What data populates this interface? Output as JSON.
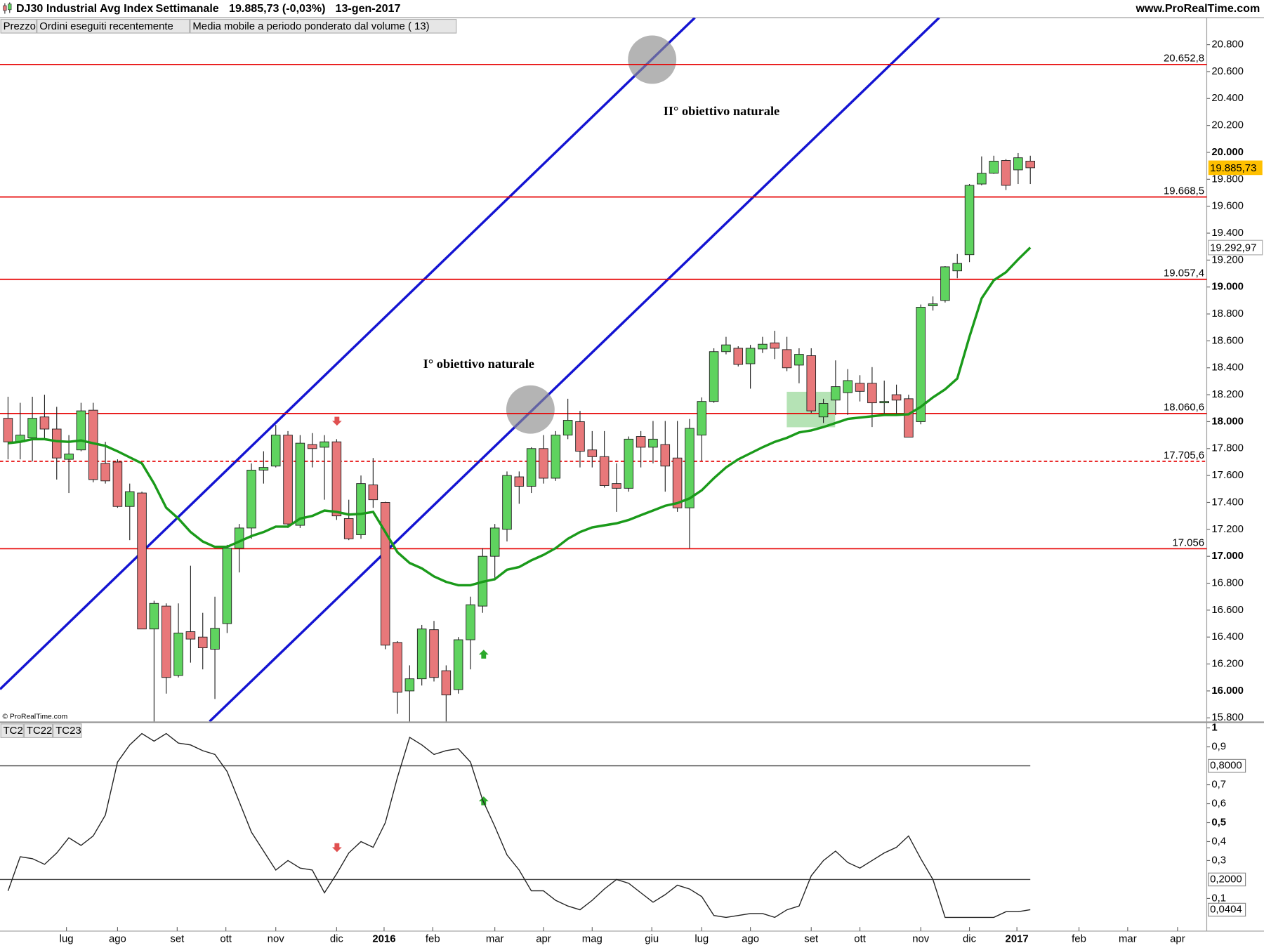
{
  "header": {
    "symbol": "DJ30 Industrial Avg Index",
    "period": "Settimanale",
    "quote": "19.885,73 (-0,03%)",
    "date": "13-gen-2017",
    "site": "www.ProRealTime.com"
  },
  "copyright": "© ProRealTime.com",
  "chart_data": [
    {
      "type": "candlestick",
      "legend": {
        "price": "Prezzo",
        "orders": "Ordini eseguiti recentemente",
        "orders_color": "#e87070"
      },
      "annotations": [
        "II° obiettivo naturale",
        "I° obiettivo naturale"
      ],
      "xlim": [
        -0.66,
        98.5
      ],
      "ylim": [
        15773,
        21000
      ],
      "yticks": [
        {
          "value": 15800,
          "label": "15.800"
        },
        {
          "value": 16000,
          "label": "16.000"
        },
        {
          "value": 16200,
          "label": "16.200"
        },
        {
          "value": 16400,
          "label": "16.400"
        },
        {
          "value": 16600,
          "label": "16.600"
        },
        {
          "value": 16800,
          "label": "16.800"
        },
        {
          "value": 17000,
          "label": "17.000"
        },
        {
          "value": 17200,
          "label": "17.200"
        },
        {
          "value": 17400,
          "label": "17.400"
        },
        {
          "value": 17600,
          "label": "17.600"
        },
        {
          "value": 17800,
          "label": "17.800"
        },
        {
          "value": 18000,
          "label": "18.000"
        },
        {
          "value": 18200,
          "label": "18.200"
        },
        {
          "value": 18400,
          "label": "18.400"
        },
        {
          "value": 18600,
          "label": "18.600"
        },
        {
          "value": 18800,
          "label": "18.800"
        },
        {
          "value": 19000,
          "label": "19.000"
        },
        {
          "value": 19200,
          "label": "19.200"
        },
        {
          "value": 19400,
          "label": "19.400"
        },
        {
          "value": 19600,
          "label": "19.600"
        },
        {
          "value": 19800,
          "label": "19.800"
        },
        {
          "value": 20000,
          "label": "20.000"
        },
        {
          "value": 20200,
          "label": "20.200"
        },
        {
          "value": 20400,
          "label": "20.400"
        },
        {
          "value": 20600,
          "label": "20.600"
        },
        {
          "value": 20800,
          "label": "20.800"
        }
      ],
      "levels": [
        {
          "value": 20652.8,
          "label": "20.652,8"
        },
        {
          "value": 19668.5,
          "label": "19.668,5"
        },
        {
          "value": 19057.4,
          "label": "19.057,4"
        },
        {
          "value": 18060.6,
          "label": "18.060,6"
        },
        {
          "value": 17705.6,
          "label": "17.705,6",
          "dashed": true
        },
        {
          "value": 17056,
          "label": "17.056"
        }
      ],
      "level_color": "#e60000",
      "series": [
        {
          "name": "Prezzo",
          "up_color": "#5fd35f",
          "down_color": "#e8787a",
          "last_label": "19.885,73",
          "last_color": "#ffc000",
          "open": [
            18025,
            17850,
            17880,
            18035,
            17945,
            17720,
            17790,
            18085,
            17690,
            17700,
            17370,
            17470,
            16460,
            16630,
            16115,
            16440,
            16400,
            16310,
            16500,
            17060,
            17210,
            17640,
            17670,
            17900,
            17230,
            17830,
            17810,
            17850,
            17280,
            17160,
            17530,
            17400,
            16360,
            16000,
            16090,
            16455,
            16150,
            16010,
            16380,
            16630,
            17000,
            17200,
            17590,
            17520,
            17800,
            17580,
            17900,
            18000,
            17790,
            17740,
            17540,
            17505,
            17890,
            17810,
            17830,
            17730,
            17360,
            17900,
            18150,
            18520,
            18545,
            18430,
            18540,
            18585,
            18535,
            18420,
            18490,
            18035,
            18160,
            18215,
            18285,
            18285,
            18140,
            18200,
            18170,
            18000,
            18860,
            18900,
            19120,
            19240,
            19765,
            19845,
            19940,
            19870,
            19935
          ],
          "high": [
            18185,
            18140,
            18185,
            18200,
            18110,
            17900,
            18140,
            18140,
            17850,
            17720,
            17540,
            17480,
            16670,
            16650,
            16650,
            16930,
            16580,
            16700,
            17085,
            17240,
            17690,
            17780,
            17975,
            17930,
            17900,
            17915,
            17900,
            17870,
            17420,
            17600,
            17730,
            17405,
            16370,
            16190,
            16490,
            16520,
            16190,
            16400,
            16700,
            17060,
            17240,
            17630,
            17630,
            17810,
            17900,
            17930,
            18170,
            18080,
            17930,
            17930,
            17690,
            17890,
            17930,
            18005,
            18005,
            18005,
            18020,
            18180,
            18545,
            18630,
            18560,
            18570,
            18630,
            18675,
            18630,
            18545,
            18545,
            18170,
            18455,
            18390,
            18345,
            18405,
            18305,
            18275,
            18200,
            18870,
            18930,
            19155,
            19245,
            19765,
            19970,
            19975,
            19950,
            19995,
            19975
          ],
          "low": [
            17720,
            17720,
            17705,
            17870,
            17570,
            17470,
            17780,
            17550,
            17540,
            17360,
            17120,
            16460,
            15370,
            15980,
            16100,
            16210,
            16160,
            15940,
            16430,
            16880,
            17130,
            17540,
            17660,
            17210,
            17210,
            17660,
            17420,
            17270,
            17120,
            17130,
            17360,
            16310,
            15830,
            15770,
            16040,
            16070,
            15770,
            15980,
            16160,
            16580,
            16820,
            17110,
            17390,
            17470,
            17540,
            17560,
            17870,
            17660,
            17660,
            17510,
            17330,
            17480,
            17660,
            17690,
            17480,
            17330,
            17060,
            17710,
            18140,
            18500,
            18410,
            18245,
            18510,
            18465,
            18375,
            18285,
            18065,
            17990,
            18050,
            18050,
            18150,
            17960,
            18050,
            18050,
            17885,
            17980,
            18825,
            18885,
            19065,
            19185,
            19755,
            19840,
            19720,
            19765,
            19765
          ],
          "close": [
            17850,
            17900,
            18025,
            17945,
            17730,
            17760,
            18080,
            17570,
            17560,
            17370,
            17480,
            16460,
            16650,
            16100,
            16430,
            16385,
            16320,
            16465,
            17060,
            17210,
            17640,
            17660,
            17900,
            17240,
            17840,
            17800,
            17850,
            17300,
            17130,
            17540,
            17420,
            16340,
            15990,
            16090,
            16460,
            16100,
            15970,
            16380,
            16640,
            17000,
            17210,
            17600,
            17520,
            17800,
            17580,
            17900,
            18010,
            17780,
            17740,
            17525,
            17505,
            17870,
            17810,
            17870,
            17670,
            17360,
            17950,
            18150,
            18520,
            18570,
            18425,
            18545,
            18575,
            18545,
            18400,
            18500,
            18080,
            18135,
            18260,
            18305,
            18225,
            18140,
            18150,
            18160,
            17885,
            18850,
            18875,
            19150,
            19175,
            19755,
            19845,
            19935,
            19755,
            19960,
            19885.73
          ]
        },
        {
          "name": "Media mobile a periodo ponderato dal volume ( 13)",
          "color": "#1a9a1a",
          "value_label": "19.292,97",
          "values": [
            17840,
            17850,
            17870,
            17870,
            17855,
            17850,
            17860,
            17840,
            17820,
            17780,
            17735,
            17690,
            17540,
            17360,
            17280,
            17180,
            17110,
            17070,
            17070,
            17110,
            17150,
            17180,
            17220,
            17220,
            17280,
            17300,
            17340,
            17330,
            17310,
            17315,
            17330,
            17180,
            17030,
            16950,
            16910,
            16850,
            16810,
            16785,
            16785,
            16810,
            16830,
            16900,
            16920,
            16970,
            17010,
            17060,
            17130,
            17180,
            17215,
            17230,
            17245,
            17270,
            17305,
            17340,
            17375,
            17395,
            17430,
            17490,
            17580,
            17660,
            17720,
            17765,
            17810,
            17850,
            17880,
            17920,
            17935,
            17960,
            17990,
            18020,
            18030,
            18040,
            18050,
            18050,
            18055,
            18110,
            18180,
            18240,
            18320,
            18630,
            18915,
            19050,
            19110,
            19205,
            19292.97
          ]
        }
      ]
    },
    {
      "type": "line",
      "tabs": [
        "TC2",
        "TC22",
        "TC23"
      ],
      "xlim": [
        -0.66,
        98.5
      ],
      "xticks": [
        {
          "value": 4.8,
          "label": "lug"
        },
        {
          "value": 9.0,
          "label": "ago"
        },
        {
          "value": 13.9,
          "label": "set"
        },
        {
          "value": 17.9,
          "label": "ott"
        },
        {
          "value": 22.0,
          "label": "nov"
        },
        {
          "value": 27.0,
          "label": "dic"
        },
        {
          "value": 30.9,
          "label": "2016"
        },
        {
          "value": 34.9,
          "label": "feb"
        },
        {
          "value": 40.0,
          "label": "mar"
        },
        {
          "value": 44.0,
          "label": "apr"
        },
        {
          "value": 48.0,
          "label": "mag"
        },
        {
          "value": 52.9,
          "label": "giu"
        },
        {
          "value": 57.0,
          "label": "lug"
        },
        {
          "value": 61.0,
          "label": "ago"
        },
        {
          "value": 66.0,
          "label": "set"
        },
        {
          "value": 70.0,
          "label": "ott"
        },
        {
          "value": 75.0,
          "label": "nov"
        },
        {
          "value": 79.0,
          "label": "dic"
        },
        {
          "value": 82.9,
          "label": "2017"
        },
        {
          "value": 88.0,
          "label": "feb"
        },
        {
          "value": 92.0,
          "label": "mar"
        },
        {
          "value": 96.1,
          "label": "apr"
        }
      ],
      "ylim": [
        -0.0723,
        1.0255
      ],
      "yticks": [
        1,
        {
          "value": 0.9,
          "label": "0,9"
        },
        {
          "value": 0.7,
          "label": "0,7"
        },
        {
          "value": 0.6,
          "label": "0,6"
        },
        {
          "value": 0.5,
          "label": "0,5"
        },
        {
          "value": 0.4,
          "label": "0,4"
        },
        {
          "value": 0.3,
          "label": "0,3"
        },
        {
          "value": 0.1,
          "label": "0,1"
        }
      ],
      "levels": [
        {
          "value": 0.8,
          "label": "0,8000"
        },
        {
          "value": 0.2,
          "label": "0,2000"
        }
      ],
      "level_color": "#444444",
      "series": [
        {
          "color": "#222222",
          "value_label": "0,0404",
          "values": [
            0.14,
            0.32,
            0.31,
            0.28,
            0.34,
            0.42,
            0.38,
            0.43,
            0.54,
            0.82,
            0.91,
            0.97,
            0.93,
            0.97,
            0.92,
            0.91,
            0.88,
            0.86,
            0.77,
            0.61,
            0.45,
            0.35,
            0.25,
            0.3,
            0.26,
            0.25,
            0.13,
            0.23,
            0.34,
            0.4,
            0.37,
            0.5,
            0.74,
            0.95,
            0.91,
            0.86,
            0.88,
            0.89,
            0.82,
            0.62,
            0.48,
            0.33,
            0.25,
            0.14,
            0.14,
            0.09,
            0.06,
            0.04,
            0.09,
            0.15,
            0.2,
            0.18,
            0.13,
            0.08,
            0.12,
            0.17,
            0.15,
            0.11,
            0.01,
            0.0,
            0.01,
            0.02,
            0.02,
            0.0,
            0.04,
            0.06,
            0.22,
            0.3,
            0.35,
            0.29,
            0.26,
            0.3,
            0.34,
            0.37,
            0.43,
            0.31,
            0.2,
            0.0,
            0.0,
            0.0,
            0.0,
            0.0,
            0.03,
            0.03,
            0.0404
          ]
        }
      ]
    }
  ]
}
